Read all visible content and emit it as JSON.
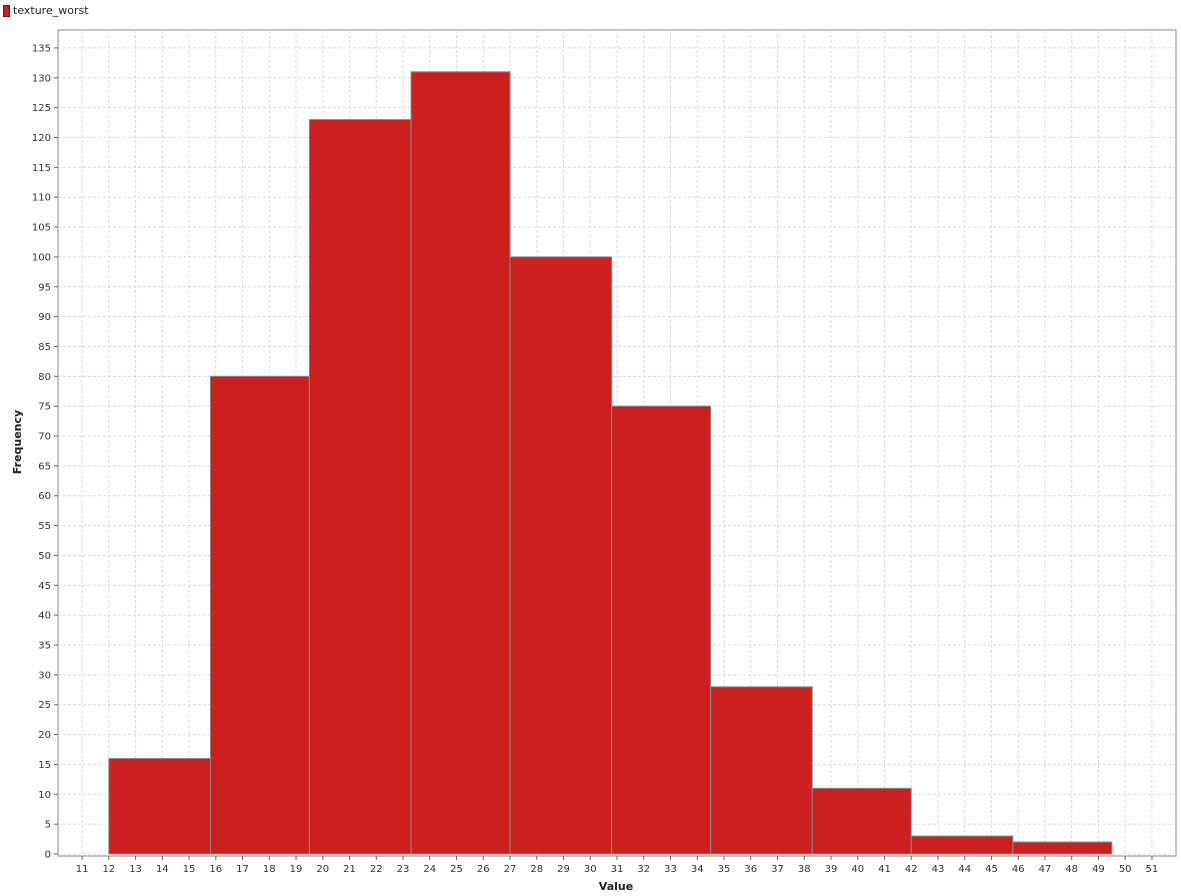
{
  "legend": {
    "label": "texture_worst",
    "color": "#cc2020"
  },
  "chart_data": {
    "type": "bar",
    "subtype": "histogram",
    "xlabel": "Value",
    "ylabel": "Frequency",
    "xlim": [
      11,
      51
    ],
    "ylim": [
      0,
      135
    ],
    "x_ticks": [
      11,
      12,
      13,
      14,
      15,
      16,
      17,
      18,
      19,
      20,
      21,
      22,
      23,
      24,
      25,
      26,
      27,
      28,
      29,
      30,
      31,
      32,
      33,
      34,
      35,
      36,
      37,
      38,
      39,
      40,
      41,
      42,
      43,
      44,
      45,
      46,
      47,
      48,
      49,
      50,
      51
    ],
    "y_ticks": [
      0,
      5,
      10,
      15,
      20,
      25,
      30,
      35,
      40,
      45,
      50,
      55,
      60,
      65,
      70,
      75,
      80,
      85,
      90,
      95,
      100,
      105,
      110,
      115,
      120,
      125,
      130,
      135
    ],
    "grid": true,
    "legend_position": "top-left",
    "series": [
      {
        "name": "texture_worst",
        "color": "#cc2020",
        "bins": [
          {
            "start": 12.0,
            "end": 15.8,
            "value": 16
          },
          {
            "start": 15.8,
            "end": 19.5,
            "value": 80
          },
          {
            "start": 19.5,
            "end": 23.3,
            "value": 123
          },
          {
            "start": 23.3,
            "end": 27.0,
            "value": 131
          },
          {
            "start": 27.0,
            "end": 30.8,
            "value": 100
          },
          {
            "start": 30.8,
            "end": 34.5,
            "value": 75
          },
          {
            "start": 34.5,
            "end": 38.3,
            "value": 28
          },
          {
            "start": 38.3,
            "end": 42.0,
            "value": 11
          },
          {
            "start": 42.0,
            "end": 45.8,
            "value": 3
          },
          {
            "start": 45.8,
            "end": 49.5,
            "value": 2
          }
        ]
      }
    ]
  }
}
